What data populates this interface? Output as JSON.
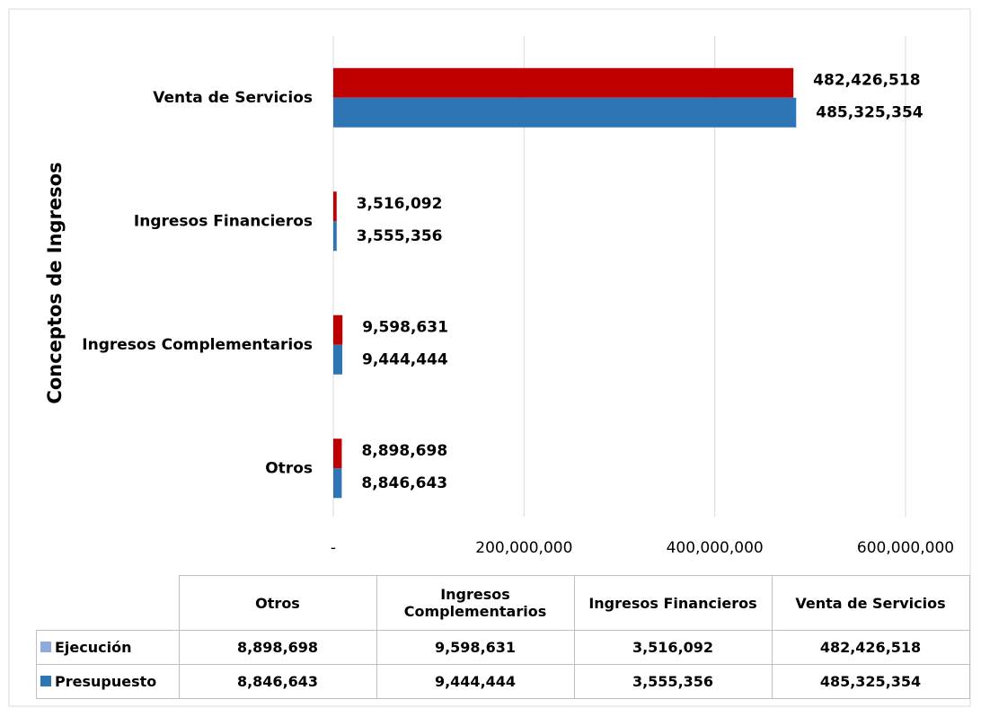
{
  "chart_data": {
    "type": "bar",
    "orientation": "horizontal",
    "y_axis_title": "Conceptos de Ingresos",
    "categories": [
      "Otros",
      "Ingresos Complementarios",
      "Ingresos Financieros",
      "Venta de Servicios"
    ],
    "series": [
      {
        "name": "Ejecución",
        "color": "#c00000",
        "legend_color": "#8faadc",
        "values": [
          8898698,
          9598631,
          3516092,
          482426518
        ],
        "value_labels": [
          "8,898,698",
          "9,598,631",
          "3,516,092",
          "482,426,518"
        ]
      },
      {
        "name": "Presupuesto",
        "color": "#2e75b6",
        "values": [
          8846643,
          9444444,
          3555356,
          485325354
        ],
        "value_labels": [
          "8,846,643",
          "9,444,444",
          "3,555,356",
          "485,325,354"
        ]
      }
    ],
    "xlim": [
      0,
      600000000
    ],
    "xticks": [
      {
        "value": 0,
        "label": "-"
      },
      {
        "value": 200000000,
        "label": "200,000,000"
      },
      {
        "value": 400000000,
        "label": "400,000,000"
      },
      {
        "value": 600000000,
        "label": "600,000,000"
      }
    ],
    "grid": true,
    "data_table": true
  }
}
